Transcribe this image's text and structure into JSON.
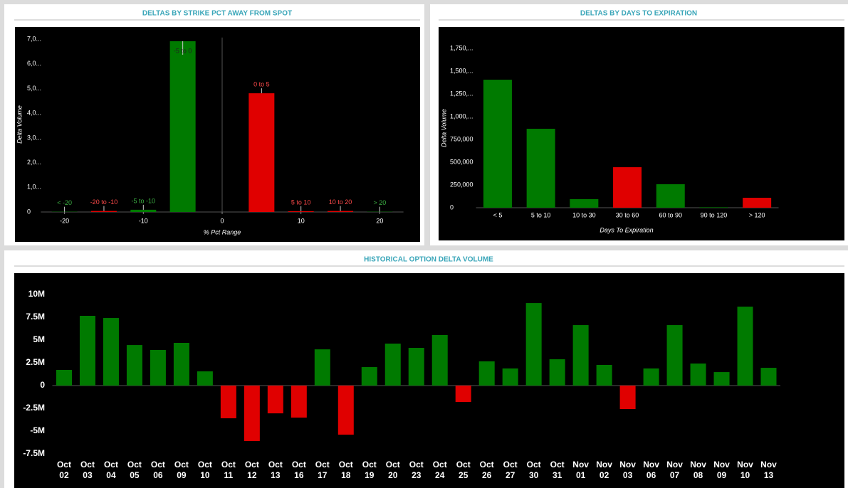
{
  "chart_data": [
    {
      "type": "bar",
      "title": "DELTAS BY STRIKE PCT AWAY FROM SPOT",
      "x_label": "% Pct Range",
      "y_label": "Delta Volume",
      "categories": [
        "< -20",
        "-20 to -10",
        "-5 to -10",
        "-5 to 0",
        "0 to 5",
        "5 to 10",
        "10 to 20",
        "> 20"
      ],
      "x": [
        -20,
        -15,
        -10,
        -5,
        5,
        10,
        15,
        20
      ],
      "values": [
        10,
        40,
        90,
        6920,
        4810,
        30,
        40,
        10
      ],
      "colors": [
        "#007a00",
        "#e00000",
        "#007a00",
        "#007a00",
        "#e00000",
        "#e00000",
        "#e00000",
        "#007a00"
      ],
      "xlim": [
        -23,
        23
      ],
      "xticks": [
        -20,
        -10,
        0,
        10,
        20
      ],
      "ylim": [
        0,
        7300
      ],
      "yticks": [
        0,
        {
          "value": 1000,
          "label": "1,0..."
        },
        {
          "value": 2000,
          "label": "2,0..."
        },
        {
          "value": 3000,
          "label": "3,0..."
        },
        {
          "value": 4000,
          "label": "4,0..."
        },
        {
          "value": 5000,
          "label": "5,0..."
        },
        {
          "value": 6000,
          "label": "6,0..."
        },
        {
          "value": 7000,
          "label": "7,0..."
        }
      ]
    },
    {
      "type": "bar",
      "title": "DELTAS BY DAYS TO EXPIRATION",
      "x_label": "Days To Expiration",
      "y_label": "Delta Volume",
      "categories": [
        "< 5",
        "5 to 10",
        "10 to 30",
        "30 to 60",
        "60 to 90",
        "90 to 120",
        "> 120"
      ],
      "values": [
        1406000,
        867000,
        94000,
        445000,
        258000,
        5000,
        109000
      ],
      "colors": [
        "#007a00",
        "#007a00",
        "#007a00",
        "#e00000",
        "#007a00",
        "#007a00",
        "#e00000"
      ],
      "ylim": [
        0,
        1930000
      ],
      "yticks": [
        0,
        {
          "value": 250000,
          "label": "250,000"
        },
        {
          "value": 500000,
          "label": "500,000"
        },
        {
          "value": 750000,
          "label": "750,000"
        },
        {
          "value": 1000000,
          "label": "1,000,..."
        },
        {
          "value": 1250000,
          "label": "1,250,..."
        },
        {
          "value": 1500000,
          "label": "1,500,..."
        },
        {
          "value": 1750000,
          "label": "1,750,..."
        }
      ]
    },
    {
      "type": "bar",
      "title": "HISTORICAL OPTION DELTA VOLUME",
      "categories": [
        "Oct 02",
        "Oct 03",
        "Oct 04",
        "Oct 05",
        "Oct 06",
        "Oct 09",
        "Oct 10",
        "Oct 11",
        "Oct 12",
        "Oct 13",
        "Oct 16",
        "Oct 17",
        "Oct 18",
        "Oct 19",
        "Oct 20",
        "Oct 23",
        "Oct 24",
        "Oct 25",
        "Oct 26",
        "Oct 27",
        "Oct 30",
        "Oct 31",
        "Nov 01",
        "Nov 02",
        "Nov 03",
        "Nov 06",
        "Nov 07",
        "Nov 08",
        "Nov 09",
        "Nov 10",
        "Nov 13"
      ],
      "values": [
        1720000,
        7660000,
        7420000,
        4450000,
        3910000,
        4690000,
        1560000,
        -3590000,
        -6090000,
        -3050000,
        -3520000,
        3980000,
        -5390000,
        2030000,
        4610000,
        4140000,
        5550000,
        -1800000,
        2660000,
        1880000,
        9060000,
        2890000,
        6640000,
        2270000,
        -2580000,
        1880000,
        6640000,
        2420000,
        1480000,
        8670000,
        1950000
      ],
      "color_positive": "#007a00",
      "color_negative": "#e00000",
      "ylim": [
        -8000000,
        12300000
      ],
      "yticks": [
        {
          "value": -7500000,
          "label": "-7.5M"
        },
        {
          "value": -5000000,
          "label": "-5M"
        },
        {
          "value": -2500000,
          "label": "-2.5M"
        },
        0,
        {
          "value": 2500000,
          "label": "2.5M"
        },
        {
          "value": 5000000,
          "label": "5M"
        },
        {
          "value": 7500000,
          "label": "7.5M"
        },
        {
          "value": 10000000,
          "label": "10M"
        }
      ]
    }
  ]
}
